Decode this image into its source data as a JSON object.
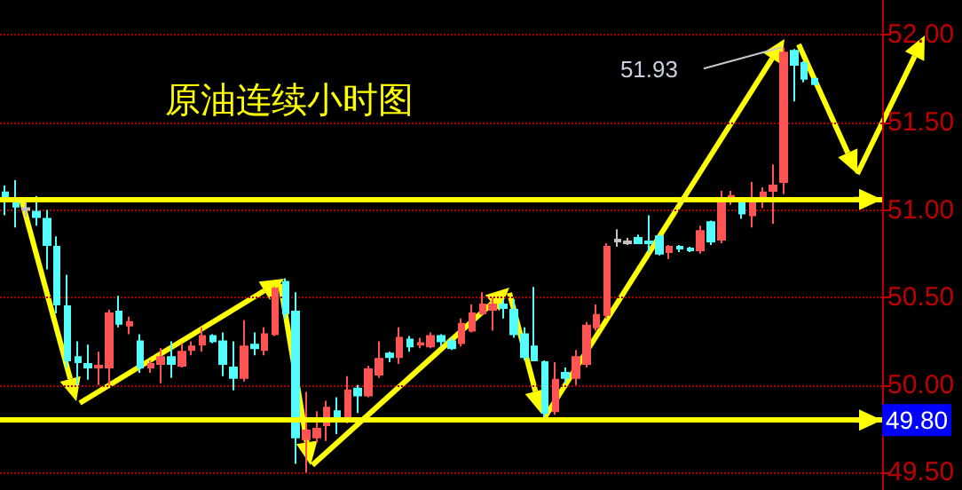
{
  "chart_data": {
    "type": "candlestick",
    "title": "原油连续小时图",
    "categories": [
      null,
      null,
      null,
      null,
      null,
      null,
      null,
      null,
      null,
      null,
      null,
      null,
      null,
      null,
      null,
      null,
      null,
      null,
      null,
      null,
      null,
      null,
      null,
      null,
      null,
      null,
      null,
      null,
      null,
      null,
      null,
      null,
      null,
      null,
      null,
      null,
      null,
      null,
      null,
      null,
      null,
      null,
      null,
      null,
      null,
      null,
      null,
      null,
      null,
      null,
      null,
      null,
      null,
      null,
      null,
      null,
      null,
      null,
      null,
      null,
      null,
      null,
      null,
      null,
      null,
      null,
      null,
      null,
      null,
      null,
      null,
      null,
      null,
      null,
      null,
      null,
      null,
      null,
      null,
      null,
      null,
      null,
      null,
      null,
      null
    ],
    "ohlc": [
      [
        51.1,
        51.14,
        50.97,
        51.05
      ],
      [
        51.04,
        51.17,
        50.9,
        51.02
      ],
      [
        51.0,
        51.05,
        50.96,
        51.01
      ],
      [
        50.99,
        51.08,
        50.91,
        50.96
      ],
      [
        50.95,
        51.0,
        50.66,
        50.8
      ],
      [
        50.79,
        50.85,
        50.41,
        50.46
      ],
      [
        50.45,
        50.63,
        50.1,
        50.14
      ],
      [
        50.16,
        50.25,
        50.0,
        50.13
      ],
      [
        50.12,
        50.23,
        50.03,
        50.1
      ],
      [
        50.1,
        50.19,
        50.0,
        50.11
      ],
      [
        50.1,
        50.43,
        50.0,
        50.41
      ],
      [
        50.42,
        50.51,
        50.33,
        50.35
      ],
      [
        50.34,
        50.39,
        50.29,
        50.36
      ],
      [
        50.25,
        50.29,
        50.07,
        50.1
      ],
      [
        50.1,
        50.14,
        50.07,
        50.12
      ],
      [
        50.12,
        50.21,
        50.01,
        50.16
      ],
      [
        50.16,
        50.25,
        50.04,
        50.12
      ],
      [
        50.11,
        50.24,
        50.1,
        50.19
      ],
      [
        50.2,
        50.25,
        50.17,
        50.22
      ],
      [
        50.23,
        50.33,
        50.19,
        50.28
      ],
      [
        50.28,
        50.29,
        50.24,
        50.25
      ],
      [
        50.25,
        50.3,
        50.05,
        50.12
      ],
      [
        50.1,
        50.25,
        49.97,
        50.04
      ],
      [
        50.04,
        50.37,
        50.02,
        50.22
      ],
      [
        50.23,
        50.3,
        50.17,
        50.21
      ],
      [
        50.2,
        50.33,
        50.17,
        50.29
      ],
      [
        50.29,
        50.56,
        50.28,
        50.55
      ],
      [
        50.59,
        50.61,
        50.38,
        50.41
      ],
      [
        50.42,
        50.53,
        49.55,
        49.7
      ],
      [
        49.69,
        49.96,
        49.5,
        49.74
      ],
      [
        49.7,
        49.85,
        49.67,
        49.75
      ],
      [
        49.77,
        49.91,
        49.68,
        49.87
      ],
      [
        49.85,
        49.93,
        49.72,
        49.8
      ],
      [
        49.79,
        50.05,
        49.78,
        49.97
      ],
      [
        49.98,
        50.0,
        49.84,
        49.94
      ],
      [
        49.94,
        50.11,
        49.93,
        50.09
      ],
      [
        50.06,
        50.25,
        50.04,
        50.15
      ],
      [
        50.18,
        50.19,
        50.13,
        50.16
      ],
      [
        50.16,
        50.33,
        50.12,
        50.27
      ],
      [
        50.26,
        50.28,
        50.19,
        50.22
      ],
      [
        50.23,
        50.27,
        50.21,
        50.24
      ],
      [
        50.22,
        50.3,
        50.21,
        50.28
      ],
      [
        50.28,
        50.29,
        50.22,
        50.25
      ],
      [
        50.25,
        50.27,
        50.2,
        50.21
      ],
      [
        50.24,
        50.38,
        50.22,
        50.35
      ],
      [
        50.31,
        50.46,
        50.3,
        50.41
      ],
      [
        50.41,
        50.53,
        50.4,
        50.46
      ],
      [
        50.43,
        50.5,
        50.31,
        50.46
      ],
      [
        50.46,
        50.49,
        50.38,
        50.44
      ],
      [
        50.43,
        50.49,
        50.27,
        50.29
      ],
      [
        50.29,
        50.33,
        50.14,
        50.16
      ],
      [
        50.22,
        50.56,
        50.14,
        50.14
      ],
      [
        50.13,
        50.14,
        49.81,
        49.84
      ],
      [
        49.85,
        50.13,
        49.83,
        50.03
      ],
      [
        50.07,
        50.1,
        50.01,
        50.04
      ],
      [
        50.04,
        50.2,
        50.0,
        50.16
      ],
      [
        50.12,
        50.36,
        50.1,
        50.34
      ],
      [
        50.33,
        50.46,
        50.31,
        50.4
      ],
      [
        50.4,
        50.81,
        50.38,
        50.79
      ],
      [
        50.82,
        50.89,
        50.79,
        50.83
      ],
      [
        50.81,
        50.84,
        50.8,
        50.82
      ],
      [
        50.84,
        50.86,
        50.81,
        50.81
      ],
      [
        50.82,
        50.97,
        50.76,
        50.81
      ],
      [
        50.85,
        50.86,
        50.74,
        50.75
      ],
      [
        50.76,
        50.8,
        50.72,
        50.79
      ],
      [
        50.79,
        50.8,
        50.76,
        50.78
      ],
      [
        50.78,
        50.79,
        50.76,
        50.77
      ],
      [
        50.77,
        50.91,
        50.75,
        50.88
      ],
      [
        50.93,
        50.94,
        50.8,
        50.82
      ],
      [
        50.83,
        51.11,
        50.81,
        51.06
      ],
      [
        51.06,
        51.11,
        51.03,
        51.08
      ],
      [
        51.05,
        51.06,
        50.95,
        50.98
      ],
      [
        50.97,
        51.16,
        50.9,
        51.06
      ],
      [
        51.05,
        51.13,
        51.01,
        51.1
      ],
      [
        51.11,
        51.26,
        50.92,
        51.14
      ],
      [
        51.16,
        51.93,
        51.09,
        51.9
      ],
      [
        51.91,
        51.92,
        51.62,
        51.83
      ],
      [
        51.84,
        51.85,
        51.73,
        51.75
      ],
      [
        51.75,
        51.75,
        51.72,
        51.72
      ],
      null,
      null,
      null,
      null,
      null,
      null
    ],
    "colors": [
      "#54fcfc",
      "#54fcfc",
      "#c0c0c0",
      "#54fcfc",
      "#54fcfc",
      "#54fcfc",
      "#54fcfc",
      "#54fcfc",
      "#54fcfc",
      "#ff5454",
      "#ff5454",
      "#54fcfc",
      "#ff5454",
      "#54fcfc",
      "#ff5454",
      "#ff5454",
      "#54fcfc",
      "#ff5454",
      "#ff5454",
      "#ff5454",
      "#54fcfc",
      "#54fcfc",
      "#54fcfc",
      "#ff5454",
      "#54fcfc",
      "#ff5454",
      "#ff5454",
      "#54fcfc",
      "#54fcfc",
      "#ff5454",
      "#ff5454",
      "#ff5454",
      "#54fcfc",
      "#ff5454",
      "#54fcfc",
      "#ff5454",
      "#ff5454",
      "#54fcfc",
      "#ff5454",
      "#54fcfc",
      "#ff5454",
      "#ff5454",
      "#54fcfc",
      "#54fcfc",
      "#ff5454",
      "#ff5454",
      "#ff5454",
      "#ff5454",
      "#54fcfc",
      "#54fcfc",
      "#54fcfc",
      "#54fcfc",
      "#54fcfc",
      "#ff5454",
      "#54fcfc",
      "#ff5454",
      "#ff5454",
      "#ff5454",
      "#ff5454",
      "#c0c0c0",
      "#c0c0c0",
      "#54fcfc",
      "#54fcfc",
      "#54fcfc",
      "#ff5454",
      "#54fcfc",
      "#54fcfc",
      "#ff5454",
      "#54fcfc",
      "#ff5454",
      "#ff5454",
      "#54fcfc",
      "#ff5454",
      "#ff5454",
      "#ff5454",
      "#ff5454",
      "#54fcfc",
      "#54fcfc",
      "#54fcfc",
      null,
      null,
      null,
      null,
      null,
      null
    ],
    "ylim": [
      49.4,
      52.2
    ],
    "yticks": [
      {
        "value": 49.5,
        "label": "49.50"
      },
      {
        "value": 50,
        "label": "50.00"
      },
      {
        "value": 50.5,
        "label": "50.50"
      },
      {
        "value": 51,
        "label": "51.00"
      },
      {
        "value": 51.5,
        "label": "51.50"
      },
      {
        "value": 52,
        "label": "52.00"
      }
    ],
    "grid": "y",
    "tick_labels": "y",
    "ref_lines": [
      {
        "axis": "y",
        "value": 51.06,
        "label": null,
        "color": "#ffff00"
      },
      {
        "axis": "y",
        "value": 49.8,
        "label": "49.80",
        "color": "#ffff00"
      }
    ],
    "annotations": [
      "51.93"
    ]
  }
}
